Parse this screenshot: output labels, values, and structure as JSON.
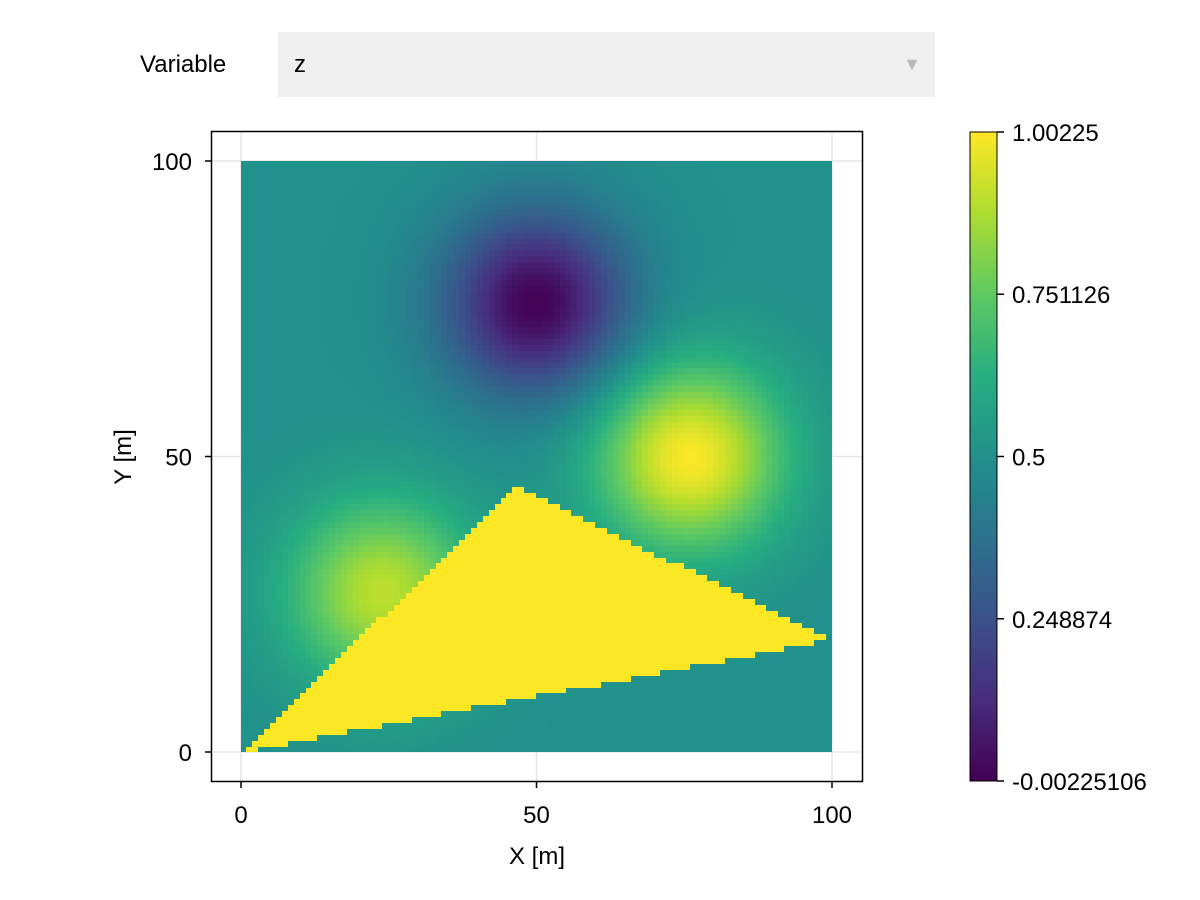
{
  "controls": {
    "variable_label": "Variable",
    "variable_selected": "z"
  },
  "colors": {
    "colormap": "viridis",
    "frame": "#000000",
    "grid": "#e5e5e5",
    "dropdown_bg": "#efefef"
  },
  "chart_data": {
    "type": "heatmap",
    "title": "",
    "xlabel": "X [m]",
    "ylabel": "Y [m]",
    "xlim": [
      -5,
      105
    ],
    "ylim": [
      -5,
      105
    ],
    "xticks": [
      0,
      50,
      100
    ],
    "yticks": [
      0,
      50,
      100
    ],
    "grid": true,
    "colorbar": {
      "colormap": "viridis",
      "min": -0.00225106,
      "max": 1.00225,
      "tick_values": [
        -0.00225106,
        0.248874,
        0.5,
        0.751126,
        1.00225
      ],
      "tick_labels": [
        "-0.00225106",
        "0.248874",
        "0.5",
        "0.751126",
        "1.00225"
      ]
    },
    "field": {
      "domain_x": [
        0,
        100
      ],
      "domain_y": [
        0,
        100
      ],
      "grid_n": 100,
      "background_value": 0.5,
      "features": [
        {
          "type": "minimum",
          "center": [
            50,
            76
          ],
          "value": 0.0
        },
        {
          "type": "maximum",
          "center": [
            76,
            50
          ],
          "value": 1.0
        },
        {
          "type": "maximum",
          "center": [
            24,
            27
          ],
          "value": 0.9
        }
      ],
      "triangle_region": {
        "value": 1.0,
        "vertices": [
          [
            0,
            0
          ],
          [
            47,
            45
          ],
          [
            100,
            19
          ]
        ]
      }
    }
  }
}
